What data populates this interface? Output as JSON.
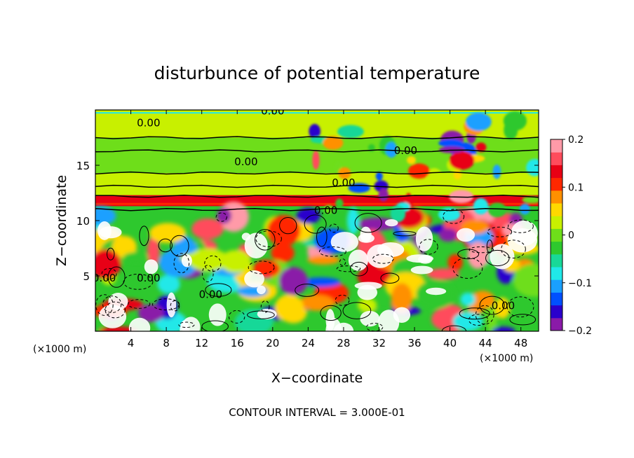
{
  "title": "disturbunce of potential temperature",
  "footer": "CONTOUR INTERVAL = 3.000E-01",
  "chart_data": {
    "type": "heatmap",
    "title": "disturbunce of potential temperature",
    "xlabel": "X−coordinate",
    "ylabel": "Z−coordinate",
    "x_unit_label": "(×1000 m)",
    "z_unit_label": "(×1000 m)",
    "xlim": [
      0,
      50
    ],
    "ylim": [
      0,
      20
    ],
    "x_ticks": [
      "4",
      "8",
      "12",
      "16",
      "20",
      "24",
      "28",
      "32",
      "36",
      "40",
      "44",
      "48"
    ],
    "y_ticks": [
      "5",
      "10",
      "15"
    ],
    "x_tick_values": [
      4,
      8,
      12,
      16,
      20,
      24,
      28,
      32,
      36,
      40,
      44,
      48
    ],
    "y_tick_values": [
      5,
      10,
      15
    ],
    "contour_labels": [
      "0.00",
      "0.00",
      "0.00",
      "0.00",
      "0.00",
      "0.00",
      "0.00",
      "0.00",
      "0.00",
      "0.00"
    ],
    "contour_interval": "3.000E-01",
    "colorbar": {
      "range": [
        -0.2,
        0.2
      ],
      "ticks": [
        "0.2",
        "0.1",
        "0",
        "−0.1",
        "−0.2"
      ],
      "tick_values": [
        0.2,
        0.1,
        0,
        -0.1,
        -0.2
      ]
    },
    "colormap": [
      "#8a1aa8",
      "#2a00cc",
      "#0050ff",
      "#1aa0ff",
      "#20e8e8",
      "#18d898",
      "#2ec82e",
      "#6ede1a",
      "#c8f000",
      "#ffd800",
      "#ff9000",
      "#ff2800",
      "#e80014",
      "#ff4c5c",
      "#ff9aa8"
    ],
    "bands": [
      {
        "z": [
          17.5,
          20
        ],
        "value": 0.02
      },
      {
        "z": [
          16.3,
          17.5
        ],
        "value": 0.01
      },
      {
        "z": [
          14.3,
          16.3
        ],
        "value": 0.0
      },
      {
        "z": [
          12.3,
          14.3
        ],
        "value": 0.03
      },
      {
        "z": [
          11.3,
          12.3
        ],
        "value": 0.13
      },
      {
        "z": [
          10.5,
          11.3
        ],
        "value": -0.02
      }
    ]
  }
}
